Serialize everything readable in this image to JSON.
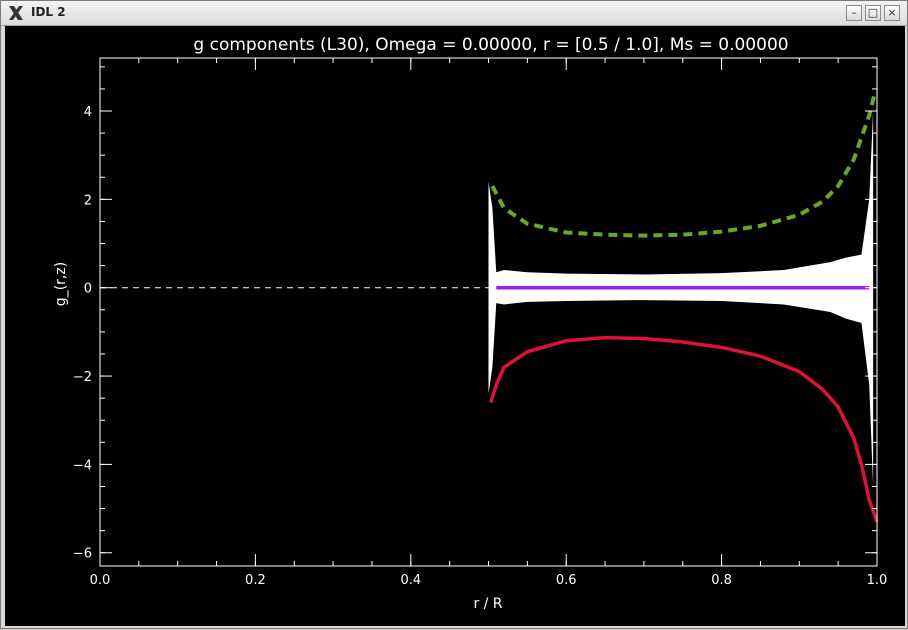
{
  "window": {
    "title": "IDL 2",
    "app_icon": "x-logo-icon",
    "buttons": {
      "minimize": "–",
      "maximize": "□",
      "close": "×"
    }
  },
  "chart_data": {
    "type": "line",
    "title": "g components (L30), Omega =  0.00000, r = [0.5 / 1.0], Ms =  0.00000",
    "xlabel": "r / R",
    "ylabel": "g_(r,z)",
    "xlim": [
      0.0,
      1.0
    ],
    "ylim": [
      -6.3,
      5.2
    ],
    "xticks": [
      0.0,
      0.2,
      0.4,
      0.6,
      0.8,
      1.0
    ],
    "xtick_labels": [
      "0.0",
      "0.2",
      "0.4",
      "0.6",
      "0.8",
      "1.0"
    ],
    "yticks": [
      -6,
      -4,
      -2,
      0,
      2,
      4
    ],
    "ytick_labels": [
      "−6",
      "−4",
      "−2",
      "0",
      "2",
      "4"
    ],
    "grid": false,
    "legend": "none",
    "colors": {
      "background": "#000000",
      "axes": "#ffffff",
      "green": "#6aa820",
      "red": "#e0103a",
      "purple": "#9a20e8",
      "envelope": "#ffffff"
    },
    "series": [
      {
        "style": "dashed",
        "color": "#6aa820",
        "x": [
          0.505,
          0.52,
          0.55,
          0.6,
          0.65,
          0.7,
          0.75,
          0.8,
          0.85,
          0.9,
          0.93,
          0.95,
          0.97,
          0.98,
          0.99,
          0.997
        ],
        "y": [
          2.3,
          1.8,
          1.45,
          1.25,
          1.2,
          1.18,
          1.2,
          1.27,
          1.4,
          1.65,
          1.95,
          2.3,
          2.9,
          3.4,
          3.9,
          4.4
        ]
      },
      {
        "style": "solid",
        "color": "#e0103a",
        "x": [
          0.503,
          0.51,
          0.52,
          0.55,
          0.6,
          0.65,
          0.7,
          0.75,
          0.8,
          0.85,
          0.9,
          0.93,
          0.95,
          0.97,
          0.98,
          0.99,
          1.0
        ],
        "y": [
          -2.6,
          -2.2,
          -1.8,
          -1.45,
          -1.2,
          -1.13,
          -1.15,
          -1.23,
          -1.35,
          -1.55,
          -1.9,
          -2.3,
          -2.7,
          -3.4,
          -4.0,
          -4.8,
          -5.3
        ]
      },
      {
        "style": "solid",
        "color": "#9a20e8",
        "x": [
          0.51,
          0.99
        ],
        "y": [
          0.0,
          0.0
        ]
      },
      {
        "style": "dashed-thin",
        "color": "#ffffff",
        "x": [
          0.0,
          0.5
        ],
        "y": [
          0.0,
          0.0
        ]
      }
    ],
    "envelope": {
      "upper": {
        "x": [
          0.5,
          0.505,
          0.51,
          0.52,
          0.55,
          0.6,
          0.7,
          0.8,
          0.88,
          0.94,
          0.96,
          0.98,
          0.99,
          0.995
        ],
        "y": [
          2.4,
          1.8,
          0.35,
          0.4,
          0.35,
          0.32,
          0.3,
          0.33,
          0.4,
          0.58,
          0.68,
          0.75,
          2.0,
          4.0
        ]
      },
      "lower": {
        "x": [
          0.5,
          0.505,
          0.51,
          0.52,
          0.55,
          0.6,
          0.7,
          0.8,
          0.88,
          0.94,
          0.96,
          0.98,
          0.99,
          0.995
        ],
        "y": [
          -2.4,
          -1.8,
          -0.35,
          -0.38,
          -0.32,
          -0.3,
          -0.28,
          -0.3,
          -0.38,
          -0.55,
          -0.7,
          -0.8,
          -2.2,
          -4.5
        ]
      }
    }
  }
}
